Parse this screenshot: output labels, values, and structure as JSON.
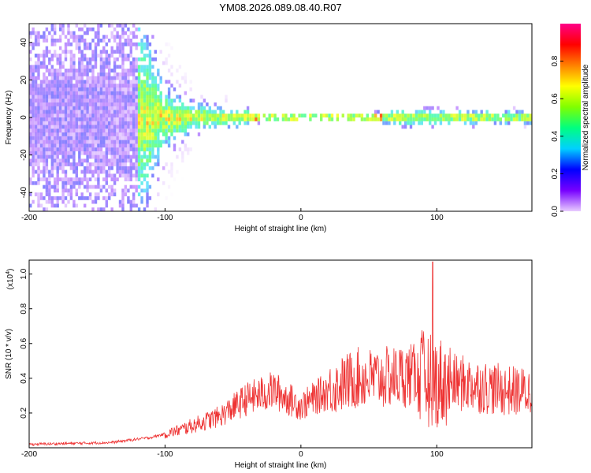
{
  "title": "YM08.2026.089.08.40.R07",
  "chart_data": [
    {
      "type": "heatmap",
      "xlabel": "Height of straight line (km)",
      "ylabel": "Frequency (Hz)",
      "xlim": [
        -200,
        170
      ],
      "ylim": [
        -50,
        50
      ],
      "xticks": [
        -200,
        -100,
        0,
        100
      ],
      "yticks": [
        -40,
        -20,
        0,
        20,
        40
      ],
      "colorbar": {
        "label": "Normalized spectral amplitude",
        "range": [
          0,
          1
        ],
        "ticks": [
          "0.0",
          "0.2",
          "0.4",
          "0.6",
          "0.8"
        ],
        "colors": [
          "#e8ccff",
          "#7700ff",
          "#0000ff",
          "#00d0ff",
          "#00ff80",
          "#80ff00",
          "#ffff00",
          "#ff8000",
          "#ff0000",
          "#ff0088"
        ]
      },
      "ridge": {
        "description": "narrow band near 0 Hz, wide scatter below -120 km",
        "band_halfwidth_hz": [
          {
            "x": -200,
            "w": 50
          },
          {
            "x": -120,
            "w": 50
          },
          {
            "x": -100,
            "w": 14
          },
          {
            "x": -80,
            "w": 7
          },
          {
            "x": -40,
            "w": 4
          },
          {
            "x": -30,
            "w": 1.5
          },
          {
            "x": 50,
            "w": 1.5
          },
          {
            "x": 70,
            "w": 4
          },
          {
            "x": 170,
            "w": 3
          }
        ]
      }
    },
    {
      "type": "line",
      "xlabel": "Height of straight line (km)",
      "ylabel": "SNR (10 * v/v)",
      "scale_label": "(x10",
      "scale_exp": "4",
      "scale_close": ")",
      "xlim": [
        -200,
        170
      ],
      "ylim": [
        0.0,
        1.08
      ],
      "xticks": [
        -200,
        -100,
        0,
        100
      ],
      "yticks": [
        "0.2",
        "0.4",
        "0.6",
        "0.8",
        "1.0"
      ],
      "color": "#ee3333",
      "envelope": [
        {
          "x": -200,
          "y": 0.02
        },
        {
          "x": -140,
          "y": 0.03
        },
        {
          "x": -110,
          "y": 0.06
        },
        {
          "x": -90,
          "y": 0.1
        },
        {
          "x": -60,
          "y": 0.18
        },
        {
          "x": -40,
          "y": 0.28
        },
        {
          "x": -20,
          "y": 0.33
        },
        {
          "x": 0,
          "y": 0.24
        },
        {
          "x": 20,
          "y": 0.33
        },
        {
          "x": 40,
          "y": 0.4
        },
        {
          "x": 60,
          "y": 0.4
        },
        {
          "x": 80,
          "y": 0.42
        },
        {
          "x": 100,
          "y": 0.38
        },
        {
          "x": 120,
          "y": 0.37
        },
        {
          "x": 150,
          "y": 0.33
        },
        {
          "x": 170,
          "y": 0.32
        }
      ],
      "peak": {
        "x": 97,
        "y": 1.07
      }
    }
  ]
}
